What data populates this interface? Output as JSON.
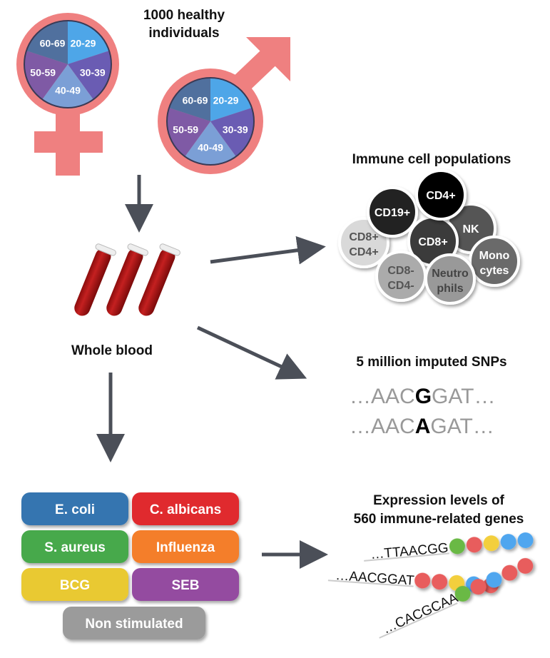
{
  "cohort": {
    "title_line1": "1000 healthy",
    "title_line2": "individuals",
    "age_groups": [
      "20-29",
      "30-39",
      "40-49",
      "50-59",
      "60-69"
    ],
    "age_colors": [
      "#4ea6e8",
      "#6a5cb3",
      "#7b9fd6",
      "#7f5aa5",
      "#50709e"
    ],
    "female_symbol_color": "#ef8080",
    "male_symbol_color": "#ef8080"
  },
  "blood": {
    "label": "Whole blood"
  },
  "cells": {
    "title": "Immune cell populations",
    "populations": [
      {
        "line1": "CD8+",
        "line2": "CD4+",
        "color": "#d9d9d9",
        "text": "#555"
      },
      {
        "line1": "CD19+",
        "line2": "",
        "color": "#222222",
        "text": "#fff"
      },
      {
        "line1": "NK",
        "line2": "",
        "color": "#555555",
        "text": "#fff"
      },
      {
        "line1": "CD8+",
        "line2": "",
        "color": "#3b3b3b",
        "text": "#fff"
      },
      {
        "line1": "CD4+",
        "line2": "",
        "color": "#000000",
        "text": "#fff"
      },
      {
        "line1": "CD8-",
        "line2": "CD4-",
        "color": "#ababab",
        "text": "#555"
      },
      {
        "line1": "Mono",
        "line2": "cytes",
        "color": "#6a6a6a",
        "text": "#fff"
      },
      {
        "line1": "Neutro",
        "line2": "phils",
        "color": "#999999",
        "text": "#444"
      }
    ]
  },
  "snps": {
    "title": "5 million imputed SNPs",
    "seq1": {
      "pre": "…AAC",
      "allele": "G",
      "post": "GAT…"
    },
    "seq2": {
      "pre": "…AAC",
      "allele": "A",
      "post": "GAT…"
    }
  },
  "stimuli": [
    {
      "label": "E. coli",
      "color": "#3575b0"
    },
    {
      "label": "C. albicans",
      "color": "#e02b2f"
    },
    {
      "label": "S. aureus",
      "color": "#47a94b"
    },
    {
      "label": "Influenza",
      "color": "#f47e2b"
    },
    {
      "label": "BCG",
      "color": "#e9c933"
    },
    {
      "label": "SEB",
      "color": "#944ba0"
    },
    {
      "label": "Non stimulated",
      "color": "#9b9b9b"
    }
  ],
  "expression": {
    "title_line1": "Expression levels of",
    "title_line2": "560 immune-related genes",
    "reads": [
      {
        "seq": "…TTAACGG",
        "beads": [
          "#6ab945",
          "#e85d5d",
          "#f3cf3d",
          "#4fa6ef",
          "#4fa6ef"
        ]
      },
      {
        "seq": "…AACGGAT",
        "beads": [
          "#e85d5d",
          "#e85d5d",
          "#f3cf3d",
          "#4fa6ef",
          "#e85d5d"
        ]
      },
      {
        "seq": "…CACGCAA",
        "beads": [
          "#6ab945",
          "#e85d5d",
          "#4fa6ef",
          "#e85d5d",
          "#e85d5d"
        ]
      }
    ]
  }
}
